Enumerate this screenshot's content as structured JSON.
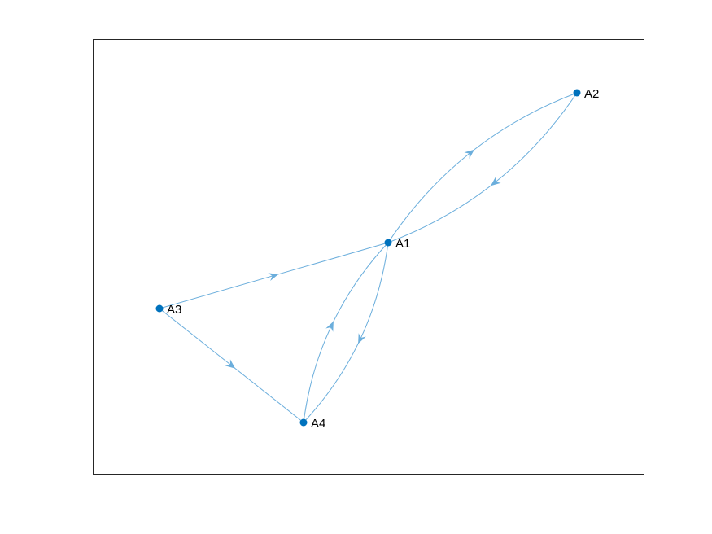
{
  "graph": {
    "directed": true,
    "nodes": [
      {
        "id": "A1",
        "label": "A1"
      },
      {
        "id": "A2",
        "label": "A2"
      },
      {
        "id": "A3",
        "label": "A3"
      },
      {
        "id": "A4",
        "label": "A4"
      }
    ],
    "edges": [
      {
        "from": "A1",
        "to": "A2"
      },
      {
        "from": "A2",
        "to": "A1"
      },
      {
        "from": "A3",
        "to": "A1"
      },
      {
        "from": "A3",
        "to": "A4"
      },
      {
        "from": "A4",
        "to": "A1"
      },
      {
        "from": "A1",
        "to": "A4"
      }
    ]
  },
  "style": {
    "node_color": "#0072BD",
    "edge_color": "#6BAEDC",
    "frame_color": "#262626"
  }
}
